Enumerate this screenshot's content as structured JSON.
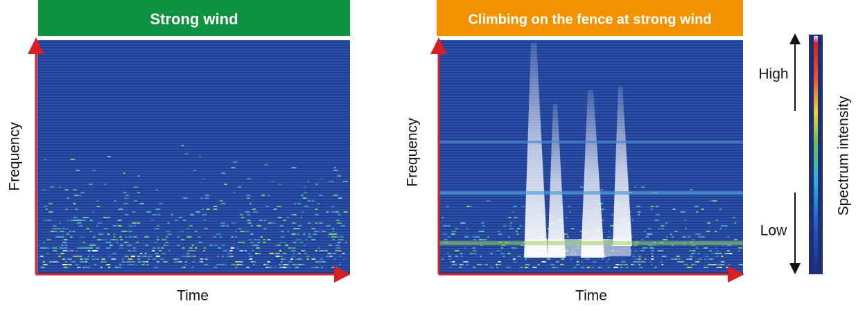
{
  "panels": [
    {
      "title": "Strong wind",
      "y_label": "Frequency",
      "x_label": "Time"
    },
    {
      "title": "Climbing on the fence at strong wind",
      "y_label": "Frequency",
      "x_label": "Time"
    }
  ],
  "colorbar": {
    "label": "Spectrum intensity",
    "high": "High",
    "low": "Low"
  }
}
